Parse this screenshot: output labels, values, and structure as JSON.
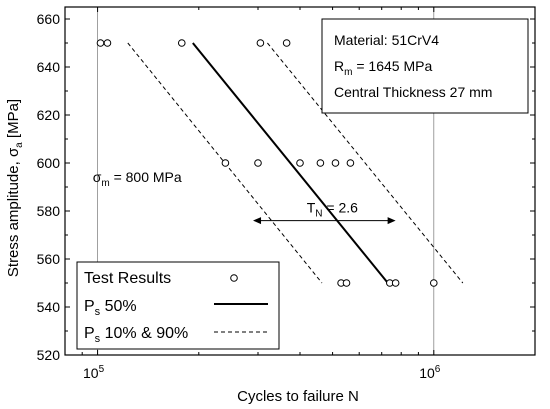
{
  "chart_data": {
    "type": "scatter",
    "xscale": "log",
    "xlim": [
      80000,
      2000000
    ],
    "ylim": [
      520,
      665
    ],
    "xlabel": "Cycles to failure N",
    "ylabel_main": "Stress amplitude, σ",
    "ylabel_sub": "a",
    "ylabel_unit": " [MPa]",
    "yticks": [
      520,
      540,
      560,
      580,
      600,
      620,
      640,
      660
    ],
    "xticks": [
      {
        "value": 100000,
        "base": "10",
        "exp": "5"
      },
      {
        "value": 1000000,
        "base": "10",
        "exp": "6"
      }
    ],
    "grid_x": [
      100000,
      1000000
    ],
    "test_results": [
      {
        "x": 102000,
        "y": 650
      },
      {
        "x": 107000,
        "y": 650
      },
      {
        "x": 178000,
        "y": 650
      },
      {
        "x": 305000,
        "y": 650
      },
      {
        "x": 365000,
        "y": 650
      },
      {
        "x": 240000,
        "y": 600
      },
      {
        "x": 300000,
        "y": 600
      },
      {
        "x": 400000,
        "y": 600
      },
      {
        "x": 460000,
        "y": 600
      },
      {
        "x": 510000,
        "y": 600
      },
      {
        "x": 565000,
        "y": 600
      },
      {
        "x": 530000,
        "y": 550
      },
      {
        "x": 550000,
        "y": 550
      },
      {
        "x": 740000,
        "y": 550
      },
      {
        "x": 770000,
        "y": 550
      },
      {
        "x": 1000000,
        "y": 550
      }
    ],
    "ps50_line": [
      {
        "x": 192000,
        "y": 650
      },
      {
        "x": 730000,
        "y": 550
      }
    ],
    "ps10_line": [
      {
        "x": 123000,
        "y": 650
      },
      {
        "x": 465000,
        "y": 550
      }
    ],
    "ps90_line": [
      {
        "x": 320000,
        "y": 650
      },
      {
        "x": 1220000,
        "y": 550
      }
    ],
    "tn_arrow": {
      "x1": 290000,
      "x2": 770000,
      "y": 576,
      "label_main": "T",
      "label_sub": "N",
      "label_rest": " = 2.6"
    },
    "sigma_m": {
      "main": "σ",
      "sub": "m",
      "rest": " = 800 MPa",
      "x": 105000,
      "y": 593
    },
    "info_box": {
      "line1": "Material: 51CrV4",
      "line2_main": "R",
      "line2_sub": "m",
      "line2_rest": " = 1645 MPa",
      "line3": "Central Thickness 27 mm"
    },
    "legend": {
      "placement": "bottom-left",
      "items": [
        {
          "type": "marker",
          "main": "Test Results",
          "sub": "",
          "rest": ""
        },
        {
          "type": "solid",
          "main": "P",
          "sub": "s",
          "rest": " 50%"
        },
        {
          "type": "dashed",
          "main": "P",
          "sub": "s",
          "rest": " 10% & 90%"
        }
      ]
    }
  }
}
